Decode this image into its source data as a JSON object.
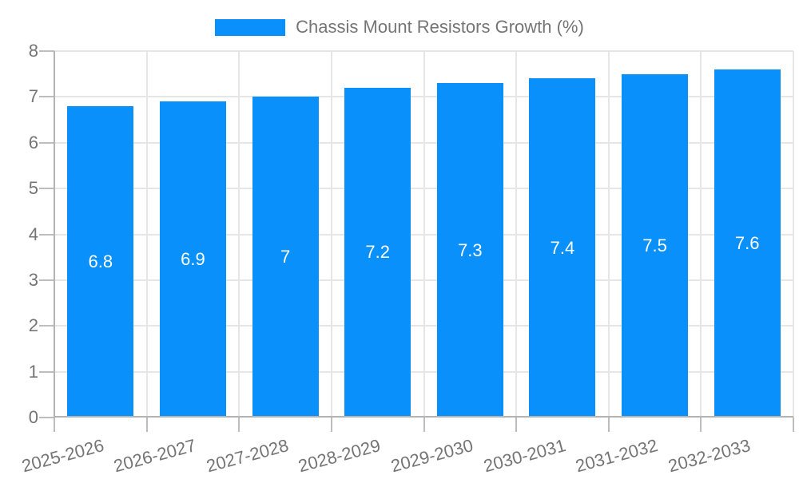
{
  "chart_data": {
    "type": "bar",
    "title": "",
    "legend": {
      "position": "top"
    },
    "categories": [
      "2025-2026",
      "2026-2027",
      "2027-2028",
      "2028-2029",
      "2029-2030",
      "2030-2031",
      "2031-2032",
      "2032-2033"
    ],
    "series": [
      {
        "name": "Chassis Mount Resistors Growth (%)",
        "values": [
          6.8,
          6.9,
          7,
          7.2,
          7.3,
          7.4,
          7.5,
          7.6
        ]
      }
    ],
    "value_labels": [
      "6.8",
      "6.9",
      "7",
      "7.2",
      "7.3",
      "7.4",
      "7.5",
      "7.6"
    ],
    "xlabel": "",
    "ylabel": "",
    "ylim": [
      0,
      8
    ],
    "yticks": [
      0,
      1,
      2,
      3,
      4,
      5,
      6,
      7,
      8
    ],
    "grid": true,
    "x_label_rotation_deg": -15,
    "colors": {
      "bar": "#0990fa",
      "axis_text": "#757575",
      "value_label": "#ffffff",
      "gridline": "#e6e6e6",
      "axis_line": "#b3b3b3",
      "tick": "#bdbdbd",
      "background": "#ffffff"
    }
  }
}
